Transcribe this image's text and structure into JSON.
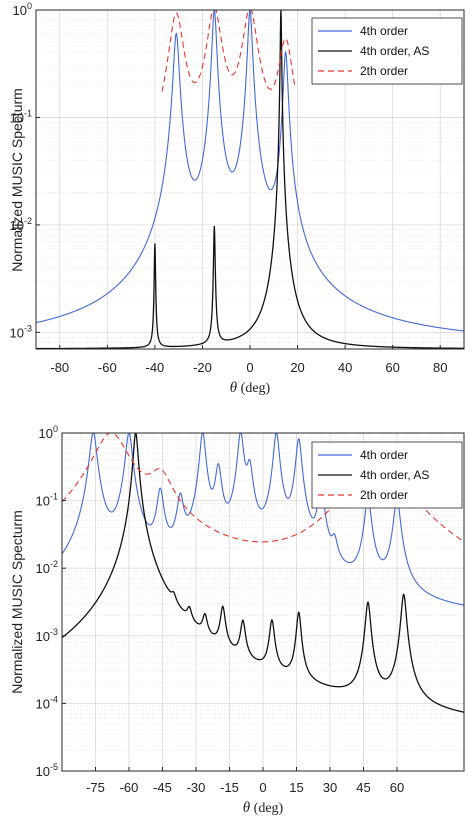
{
  "colors": {
    "blue": "#4169d6",
    "black": "#111111",
    "red": "#e8352b",
    "grid": "#d9d9d9"
  },
  "chart_data": [
    {
      "type": "line",
      "ylabel": "Normalized MUSIC Specturm",
      "xlabel_symbol": "θ",
      "xlabel_unit": " (deg)",
      "x_ticks": [
        "-80",
        "-60",
        "-40",
        "-20",
        "0",
        "20",
        "40",
        "60",
        "80"
      ],
      "x_tick_values": [
        -80,
        -60,
        -40,
        -20,
        0,
        20,
        40,
        60,
        80
      ],
      "xlim": [
        -90,
        90
      ],
      "yscale": "log",
      "ylim": [
        0.0007,
        1
      ],
      "y_ticks": [
        {
          "base": "10",
          "exp": "0",
          "value": 1
        },
        {
          "base": "10",
          "exp": "-1",
          "value": 0.1
        },
        {
          "base": "10",
          "exp": "-2",
          "value": 0.01
        },
        {
          "base": "10",
          "exp": "-3",
          "value": 0.001
        }
      ],
      "grid": true,
      "legend_position": "top-right",
      "series": [
        {
          "name": "4th order",
          "style": "solid",
          "color": "blue",
          "baseline": 0.00075,
          "peaks": [
            [
              -31,
              0.6,
              1.1
            ],
            [
              -15,
              1,
              0.9
            ],
            [
              0,
              1,
              0.9
            ],
            [
              15,
              0.4,
              0.9
            ]
          ]
        },
        {
          "name": "4th order, AS",
          "style": "solid",
          "color": "black",
          "baseline": 0.0007,
          "peaks": [
            [
              -40,
              0.006,
              0.25
            ],
            [
              -15,
              0.009,
              0.3
            ],
            [
              13,
              1,
              0.25
            ]
          ]
        },
        {
          "name": "2th order",
          "style": "dashed",
          "color": "red",
          "baseline": 0.0007,
          "peaks": [
            [
              -31,
              0.9,
              2.7
            ],
            [
              -15,
              1,
              2.7
            ],
            [
              0,
              1,
              2.7
            ],
            [
              15,
              0.5,
              2.7
            ]
          ],
          "range": [
            -37,
            19
          ]
        }
      ]
    },
    {
      "type": "line",
      "ylabel": "Normalized MUSIC Specturm",
      "xlabel_symbol": "θ",
      "xlabel_unit": " (deg)",
      "x_ticks": [
        "-75",
        "-60",
        "-45",
        "-30",
        "-15",
        "0",
        "15",
        "30",
        "45",
        "60"
      ],
      "x_tick_values": [
        -75,
        -60,
        -45,
        -30,
        -15,
        0,
        15,
        30,
        45,
        60
      ],
      "xlim": [
        -90,
        90
      ],
      "yscale": "log",
      "ylim": [
        1e-05,
        1
      ],
      "y_ticks": [
        {
          "base": "10",
          "exp": "0",
          "value": 1
        },
        {
          "base": "10",
          "exp": "-1",
          "value": 0.1
        },
        {
          "base": "10",
          "exp": "-2",
          "value": 0.01
        },
        {
          "base": "10",
          "exp": "-3",
          "value": 0.001
        },
        {
          "base": "10",
          "exp": "-4",
          "value": 0.0001
        },
        {
          "base": "10",
          "exp": "-5",
          "value": 1e-05
        }
      ],
      "grid": true,
      "legend_position": "top-right",
      "series": [
        {
          "name": "4th order",
          "style": "solid",
          "color": "blue",
          "baseline": 0.0015,
          "peaks": [
            [
              -76,
              1,
              1.5
            ],
            [
              -60,
              1,
              1.4
            ],
            [
              -46,
              0.13,
              1.4
            ],
            [
              -37,
              0.1,
              1.4
            ],
            [
              -27,
              1,
              1.2
            ],
            [
              -20,
              0.3,
              1.3
            ],
            [
              -10,
              1,
              1.2
            ],
            [
              -6,
              0.3,
              1.3
            ],
            [
              6,
              1,
              1.2
            ],
            [
              16,
              0.8,
              1.2
            ],
            [
              26,
              0.15,
              1.3
            ],
            [
              32,
              0.014,
              1.3
            ],
            [
              47,
              0.1,
              1.4
            ],
            [
              60,
              0.1,
              1.4
            ]
          ]
        },
        {
          "name": "4th order, AS",
          "style": "solid",
          "color": "black",
          "baseline": 1.8e-05,
          "peaks": [
            [
              -57,
              1,
              1.0
            ],
            [
              -40,
              0.00095,
              1.1
            ],
            [
              -33,
              0.0009,
              1.1
            ],
            [
              -26,
              0.001,
              1.1
            ],
            [
              -18,
              0.002,
              1.1
            ],
            [
              -9,
              0.0012,
              1.1
            ],
            [
              4,
              0.0014,
              1.1
            ],
            [
              16,
              0.002,
              1.0
            ],
            [
              47,
              0.003,
              1.1
            ],
            [
              63,
              0.004,
              1.1
            ]
          ]
        },
        {
          "name": "2th order",
          "style": "dashed",
          "color": "red",
          "baseline": 0.0008,
          "peaks": [
            [
              -68,
              1,
              7
            ],
            [
              -46,
              0.2,
              5
            ],
            [
              40,
              0.1,
              10
            ],
            [
              60,
              0.13,
              12
            ]
          ]
        }
      ]
    }
  ]
}
